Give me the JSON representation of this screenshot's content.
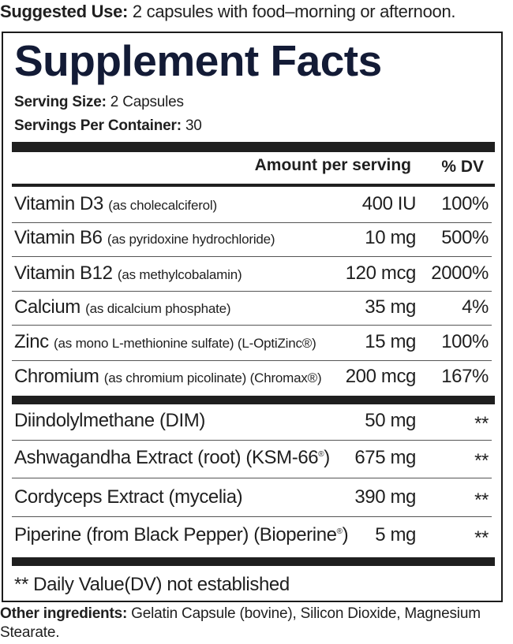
{
  "suggested_use": {
    "label": "Suggested Use:",
    "text": " 2 capsules with food–morning or afternoon."
  },
  "panel": {
    "title": "Supplement Facts",
    "serving_size_label": "Serving Size:",
    "serving_size_value": " 2 Capsules",
    "servings_per_container_label": "Servings Per Container:",
    "servings_per_container_value": " 30",
    "header_amount": "Amount per serving",
    "header_dv": "% DV",
    "nutrients": [
      {
        "name": "Vitamin D3",
        "qualifier": "(as cholecalciferol)",
        "amount": "400 IU",
        "dv": "100%"
      },
      {
        "name": "Vitamin B6",
        "qualifier": "(as pyridoxine hydrochloride)",
        "amount": "10 mg",
        "dv": "500%"
      },
      {
        "name": "Vitamin B12",
        "qualifier": "(as methylcobalamin)",
        "amount": "120 mcg",
        "dv": "2000%"
      },
      {
        "name": "Calcium",
        "qualifier": "(as dicalcium phosphate)",
        "amount": "35 mg",
        "dv": "4%"
      },
      {
        "name": "Zinc",
        "qualifier": "(as mono L-methionine sulfate) (L-OptiZinc®)",
        "amount": "15 mg",
        "dv": "100%"
      },
      {
        "name": "Chromium",
        "qualifier": "(as chromium picolinate) (Chromax®)",
        "amount": "200 mcg",
        "dv": "167%"
      }
    ],
    "other_actives": [
      {
        "name": "Diindolylmethane (DIM)",
        "amount": "50 mg",
        "dv": "**"
      },
      {
        "name": "Ashwagandha Extract (root) (KSM-66",
        "reg": "®",
        "tail": ")",
        "amount": "675 mg",
        "dv": "**"
      },
      {
        "name": "Cordyceps Extract (mycelia)",
        "amount": "390 mg",
        "dv": "**"
      },
      {
        "name": "Piperine (from Black Pepper) (Bioperine",
        "reg": "®",
        "tail": ")",
        "amount": "5 mg",
        "dv": "**"
      }
    ],
    "footnote": "** Daily Value(DV) not established"
  },
  "other_ingredients": {
    "label": "Other ingredients:",
    "text": " Gelatin Capsule (bovine), Silicon Dioxide, Magnesium Stearate."
  }
}
